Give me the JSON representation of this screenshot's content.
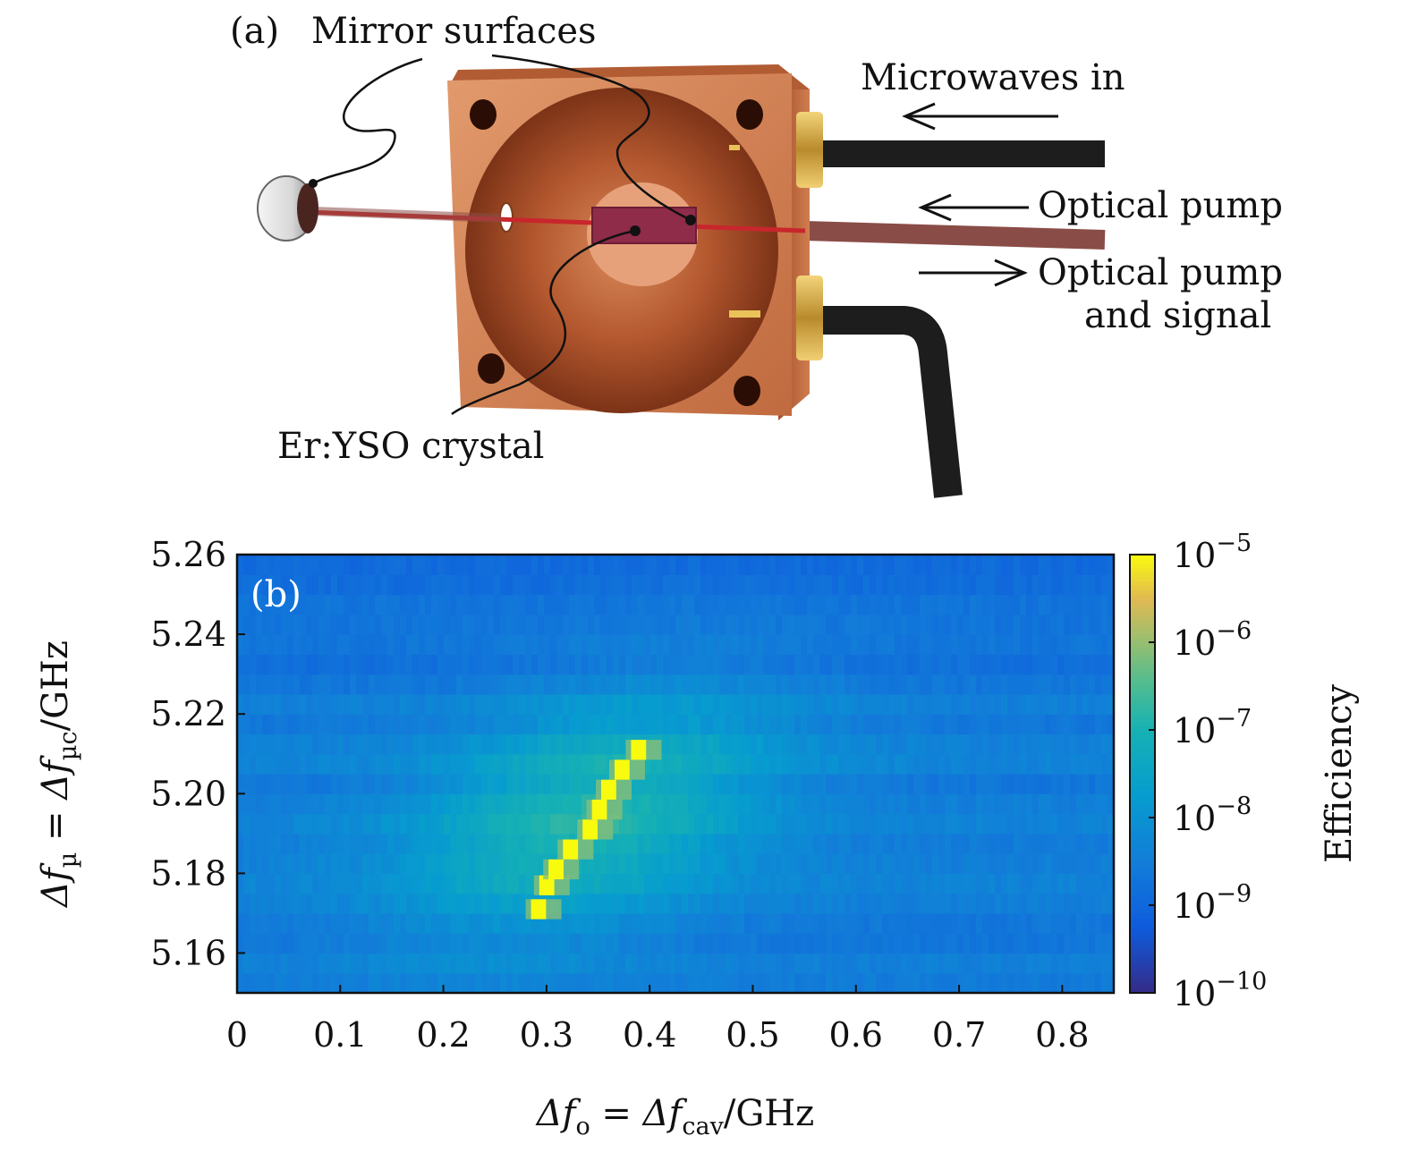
{
  "panel_a": {
    "label": "(a)",
    "callouts": {
      "mirror": "Mirror surfaces",
      "crystal": "Er:YSO crystal",
      "microwaves": "Microwaves in",
      "pump": "Optical pump",
      "pump_signal_line1": "Optical pump",
      "pump_signal_line2": "and signal"
    },
    "colors": {
      "copper": "#c8744a",
      "beam": "#c8262c",
      "cable": "#1d1d1d"
    }
  },
  "chart_data": {
    "type": "heatmap",
    "panel_label": "(b)",
    "xlabel": "Δf_o = Δf_cav/GHz",
    "xlabel_parts": {
      "lhs_var": "Δf",
      "lhs_sub": "o",
      "rhs_var": "Δf",
      "rhs_sub": "cav",
      "unit": "/GHz"
    },
    "ylabel": "Δf_µ = Δf_µc/GHz",
    "ylabel_parts": {
      "lhs_var": "Δf",
      "lhs_sub": "µ",
      "rhs_var": "Δf",
      "rhs_sub": "µc",
      "unit": "/GHz"
    },
    "xlim": [
      0,
      0.85
    ],
    "ylim": [
      5.15,
      5.26
    ],
    "xticks": [
      "0",
      "0.1",
      "0.2",
      "0.3",
      "0.4",
      "0.5",
      "0.6",
      "0.7",
      "0.8"
    ],
    "yticks": [
      "5.16",
      "5.18",
      "5.20",
      "5.22",
      "5.24",
      "5.26"
    ],
    "colorbar": {
      "label": "Efficiency",
      "scale": "log",
      "range": [
        1e-10,
        1e-05
      ],
      "ticks": [
        {
          "base": "10",
          "exp": "−5"
        },
        {
          "base": "10",
          "exp": "−6"
        },
        {
          "base": "10",
          "exp": "−7"
        },
        {
          "base": "10",
          "exp": "−8"
        },
        {
          "base": "10",
          "exp": "−9"
        },
        {
          "base": "10",
          "exp": "−10"
        }
      ],
      "colormap": "parula"
    },
    "peak_ridge": [
      {
        "x": 0.285,
        "y": 5.171,
        "value": 1e-05
      },
      {
        "x": 0.293,
        "y": 5.177,
        "value": 1e-05
      },
      {
        "x": 0.302,
        "y": 5.181,
        "value": 1e-05
      },
      {
        "x": 0.316,
        "y": 5.186,
        "value": 1e-05
      },
      {
        "x": 0.335,
        "y": 5.191,
        "value": 1e-05
      },
      {
        "x": 0.344,
        "y": 5.196,
        "value": 1e-05
      },
      {
        "x": 0.353,
        "y": 5.201,
        "value": 1e-05
      },
      {
        "x": 0.366,
        "y": 5.206,
        "value": 1e-05
      },
      {
        "x": 0.382,
        "y": 5.211,
        "value": 1e-05
      }
    ],
    "background_level": 3e-09
  }
}
